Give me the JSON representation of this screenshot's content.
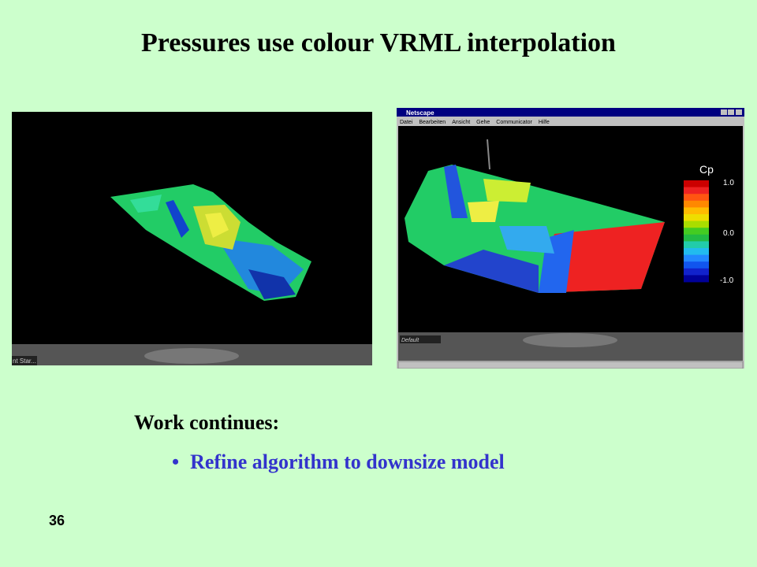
{
  "title": "Pressures use colour VRML interpolation",
  "left_screenshot": {
    "status_text": "nt Star..."
  },
  "right_screenshot": {
    "window_title": "Netscape",
    "menu": [
      "Datei",
      "Bearbeiten",
      "Ansicht",
      "Gehe",
      "Communicator",
      "Hilfe"
    ],
    "viewpoint": "Default",
    "legend": {
      "title": "Cp",
      "labels": [
        "1.0",
        "0.0",
        "-1.0"
      ]
    }
  },
  "body": {
    "heading": "Work continues:",
    "bullets": [
      "Refine algorithm to downsize model"
    ]
  },
  "page_number": "36"
}
